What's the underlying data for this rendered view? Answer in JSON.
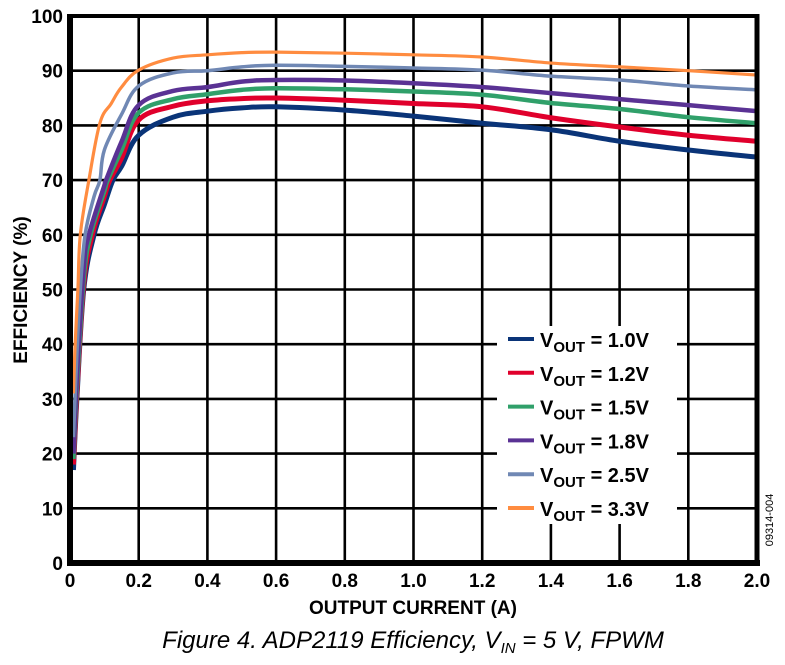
{
  "chart_data": {
    "type": "line",
    "title": "",
    "caption": {
      "prefix": "Figure 4. ADP2119 Efficiency, V",
      "subscript": "IN",
      "suffix": " = 5 V, FPWM"
    },
    "figure_id": "09314-004",
    "xlabel": "OUTPUT CURRENT (A)",
    "ylabel": "EFFICIENCY (%)",
    "xlim": [
      0,
      2.0
    ],
    "ylim": [
      0,
      100
    ],
    "xticks": [
      0,
      0.2,
      0.4,
      0.6,
      0.8,
      1.0,
      1.2,
      1.4,
      1.6,
      1.8,
      2.0
    ],
    "xtick_labels": [
      "0",
      "0.2",
      "0.4",
      "0.6",
      "0.8",
      "1.0",
      "1.2",
      "1.4",
      "1.6",
      "1.8",
      "2.0"
    ],
    "yticks": [
      0,
      10,
      20,
      30,
      40,
      50,
      60,
      70,
      80,
      90,
      100
    ],
    "ytick_labels": [
      "0",
      "10",
      "20",
      "30",
      "40",
      "50",
      "60",
      "70",
      "80",
      "90",
      "100"
    ],
    "grid": true,
    "legend_position": "lower-right",
    "series": [
      {
        "name": "VOUT = 1.0V",
        "label_main": "V",
        "label_sub": "OUT",
        "label_value": " = 1.0V",
        "color": "#0a3478",
        "x": [
          0.01,
          0.02,
          0.04,
          0.07,
          0.1,
          0.125,
          0.15,
          0.2,
          0.3,
          0.4,
          0.5,
          0.6,
          0.8,
          1.0,
          1.2,
          1.4,
          1.6,
          1.8,
          2.0
        ],
        "y": [
          17,
          30,
          50,
          60,
          65.5,
          70,
          72.5,
          78.2,
          81.5,
          82.6,
          83.2,
          83.4,
          82.8,
          81.7,
          80.4,
          79.2,
          77.1,
          75.5,
          74.2
        ]
      },
      {
        "name": "VOUT = 1.2V",
        "label_main": "V",
        "label_sub": "OUT",
        "label_value": " = 1.2V",
        "color": "#e0002c",
        "x": [
          0.01,
          0.02,
          0.04,
          0.065,
          0.1,
          0.116,
          0.15,
          0.2,
          0.3,
          0.4,
          0.5,
          0.6,
          0.8,
          1.0,
          1.2,
          1.4,
          1.6,
          1.8,
          2.0
        ],
        "y": [
          18,
          31,
          51,
          60,
          67,
          70,
          74,
          81.0,
          83.5,
          84.5,
          84.9,
          85.0,
          84.6,
          84.0,
          83.4,
          81.4,
          79.7,
          78.2,
          77.1
        ]
      },
      {
        "name": "VOUT = 1.5V",
        "label_main": "V",
        "label_sub": "OUT",
        "label_value": " = 1.5V",
        "color": "#30a06a",
        "x": [
          0.01,
          0.02,
          0.04,
          0.06,
          0.1,
          0.11,
          0.15,
          0.2,
          0.3,
          0.4,
          0.5,
          0.6,
          0.8,
          1.0,
          1.2,
          1.4,
          1.6,
          1.8,
          2.0
        ],
        "y": [
          19,
          32,
          52,
          60,
          68,
          70,
          75.5,
          82.3,
          84.8,
          85.7,
          86.5,
          86.8,
          86.6,
          86.2,
          85.6,
          84.1,
          83.0,
          81.5,
          80.4
        ]
      },
      {
        "name": "VOUT = 1.8V",
        "label_main": "V",
        "label_sub": "OUT",
        "label_value": " = 1.8V",
        "color": "#5a3294",
        "x": [
          0.01,
          0.02,
          0.04,
          0.055,
          0.1,
          0.105,
          0.15,
          0.2,
          0.3,
          0.4,
          0.5,
          0.6,
          0.8,
          1.0,
          1.2,
          1.4,
          1.6,
          1.8,
          2.0
        ],
        "y": [
          20,
          34,
          54,
          60,
          69,
          70,
          77,
          83.7,
          86.3,
          87.0,
          88.0,
          88.3,
          88.2,
          87.7,
          87.0,
          85.9,
          84.8,
          83.7,
          82.6
        ]
      },
      {
        "name": "VOUT = 2.5V",
        "label_main": "V",
        "label_sub": "OUT",
        "label_value": " = 2.5V",
        "color": "#7088b4",
        "x": [
          0.01,
          0.02,
          0.03,
          0.044,
          0.07,
          0.087,
          0.1,
          0.15,
          0.2,
          0.3,
          0.4,
          0.5,
          0.6,
          0.8,
          1.0,
          1.2,
          1.4,
          1.6,
          1.8,
          2.0
        ],
        "y": [
          23,
          38,
          50,
          60,
          67,
          70,
          75.5,
          82,
          87.2,
          89.6,
          90.0,
          90.7,
          91.0,
          90.8,
          90.5,
          90.1,
          89.0,
          88.3,
          87.2,
          86.5
        ]
      },
      {
        "name": "VOUT = 3.3V",
        "label_main": "V",
        "label_sub": "OUT",
        "label_value": " = 3.3V",
        "color": "#ff8c40",
        "x": [
          0.01,
          0.015,
          0.023,
          0.03,
          0.055,
          0.087,
          0.12,
          0.15,
          0.2,
          0.3,
          0.4,
          0.5,
          0.6,
          0.8,
          1.0,
          1.2,
          1.4,
          1.6,
          1.8,
          2.0
        ],
        "y": [
          31,
          40,
          50,
          60,
          70,
          80.4,
          84,
          87,
          90.1,
          92.3,
          92.9,
          93.3,
          93.4,
          93.2,
          92.9,
          92.5,
          91.4,
          90.7,
          90.0,
          89.2
        ]
      }
    ]
  }
}
